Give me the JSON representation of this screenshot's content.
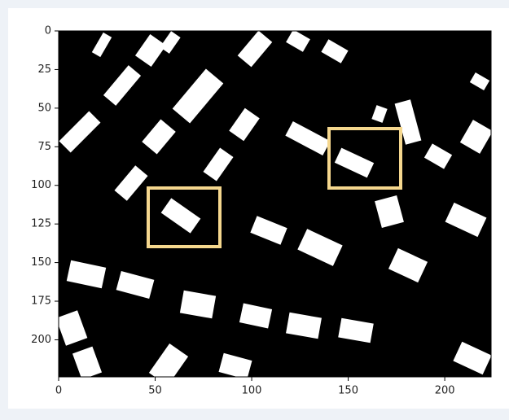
{
  "chart_data": {
    "type": "image",
    "xlim": [
      0,
      224
    ],
    "ylim": [
      224,
      0
    ],
    "xticks": [
      0,
      50,
      100,
      150,
      200
    ],
    "yticks": [
      0,
      25,
      50,
      75,
      100,
      125,
      150,
      175,
      200
    ]
  }
}
